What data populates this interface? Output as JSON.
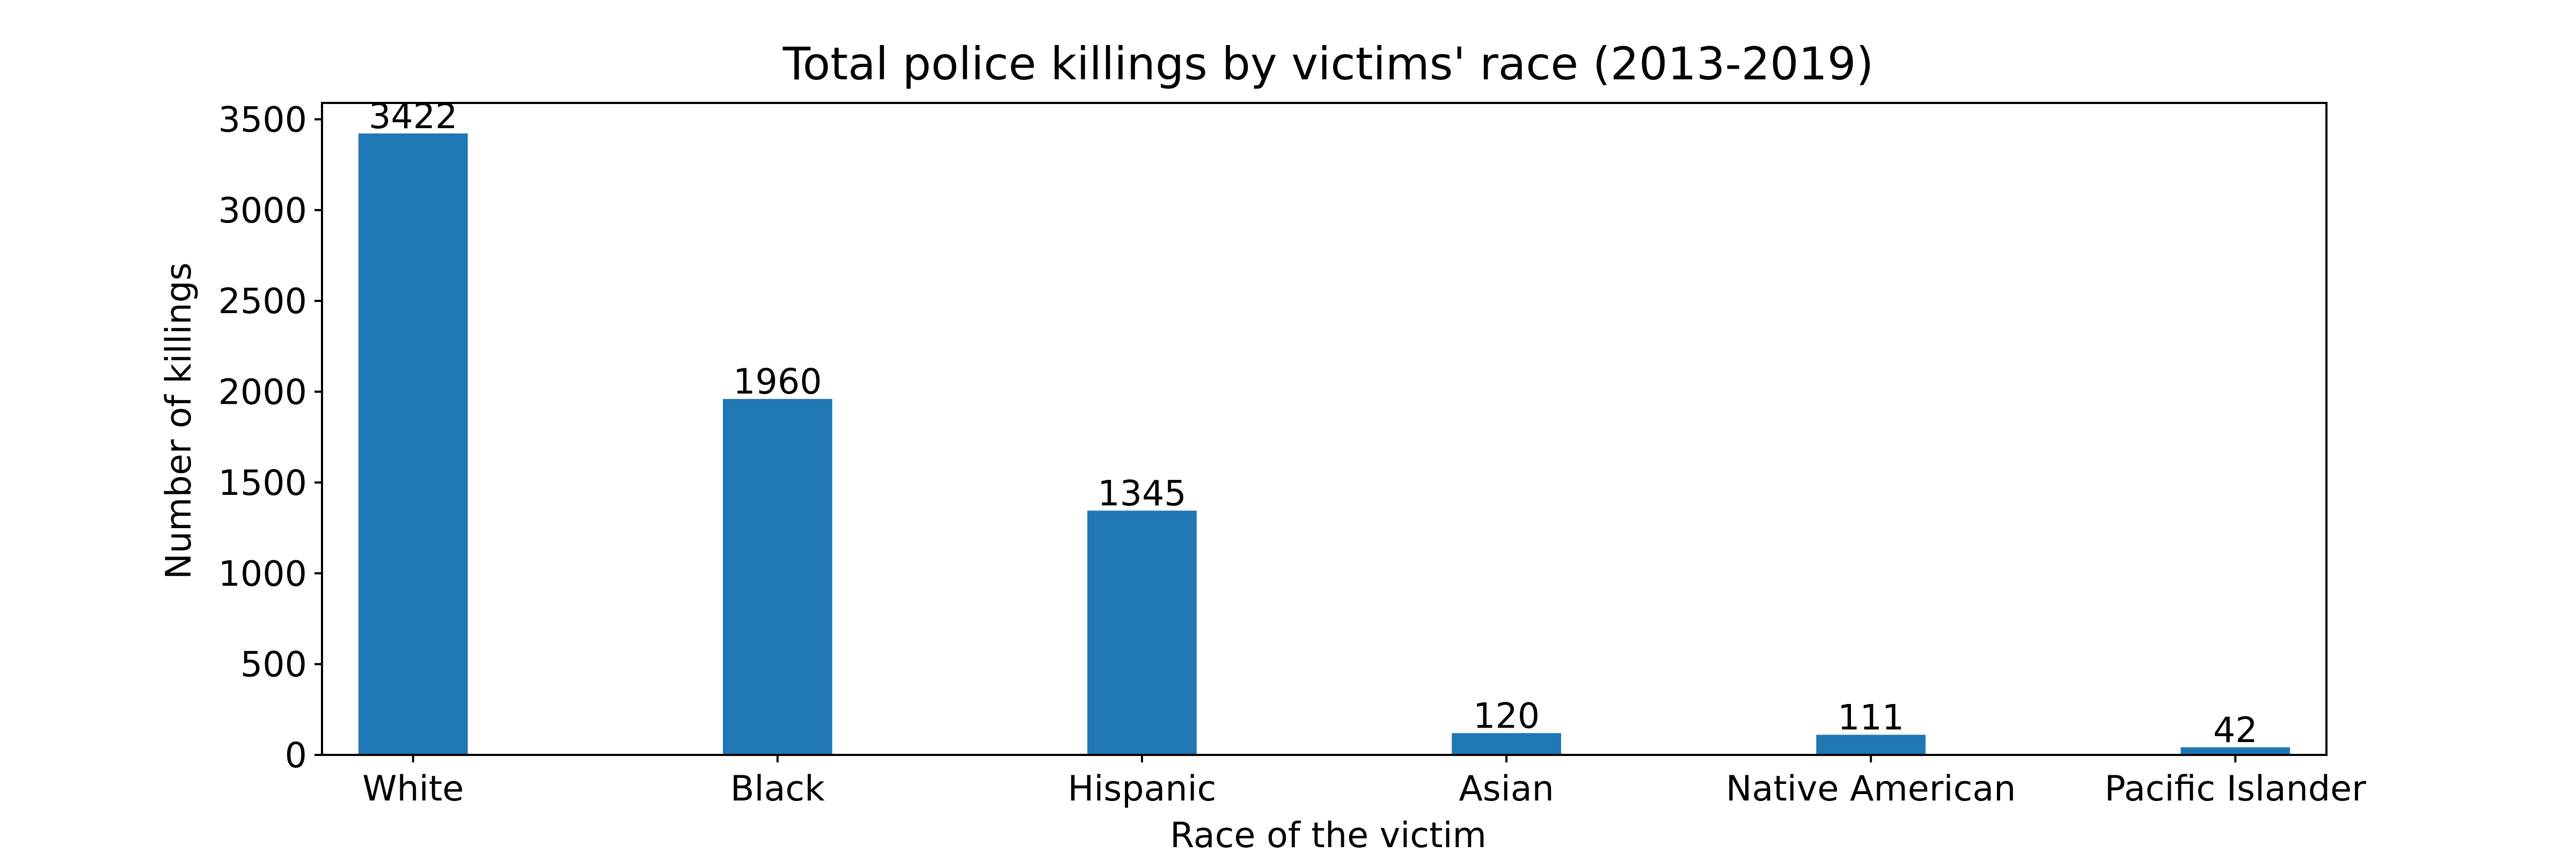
{
  "chart_data": {
    "type": "bar",
    "title": "Total police killings by victims' race (2013-2019)",
    "xlabel": "Race of the victim",
    "ylabel": "Number of killings",
    "categories": [
      "White",
      "Black",
      "Hispanic",
      "Asian",
      "Native American",
      "Pacific Islander"
    ],
    "values": [
      3422,
      1960,
      1345,
      120,
      111,
      42
    ],
    "data_labels": [
      "3422",
      "1960",
      "1345",
      "120",
      "111",
      "42"
    ],
    "ylim": [
      0,
      3590
    ],
    "yticks": [
      0,
      500,
      1000,
      1500,
      2000,
      2500,
      3000,
      3500
    ],
    "ytick_labels": [
      "0",
      "500",
      "1000",
      "1500",
      "2000",
      "2500",
      "3000",
      "3500"
    ],
    "grid": false,
    "legend": "none",
    "bar_color": "#1f77b4"
  }
}
